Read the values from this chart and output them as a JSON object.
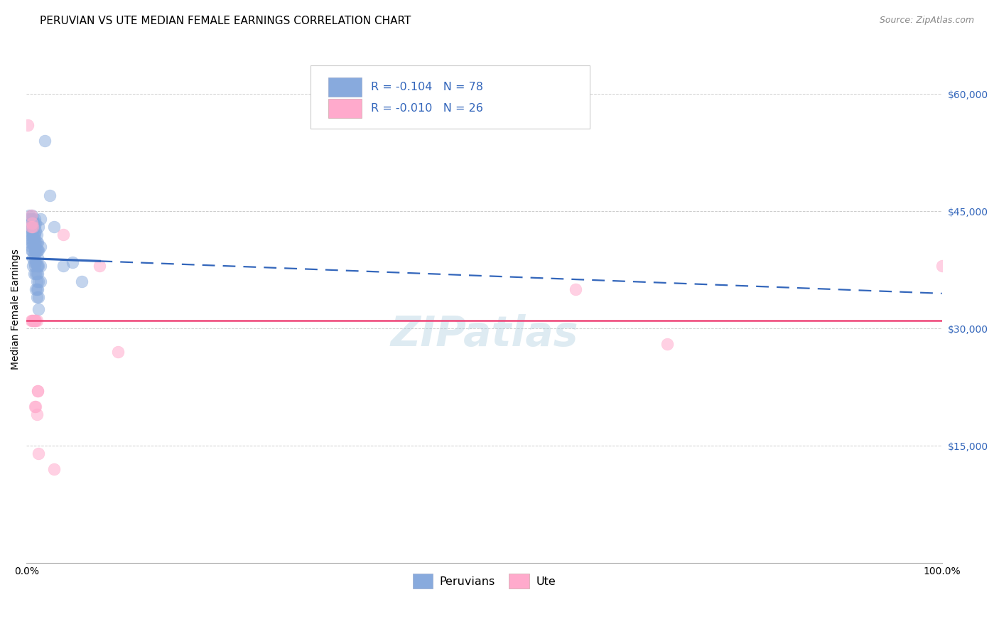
{
  "title": "PERUVIAN VS UTE MEDIAN FEMALE EARNINGS CORRELATION CHART",
  "source": "Source: ZipAtlas.com",
  "ylabel": "Median Female Earnings",
  "legend_blue_label": "Peruvians",
  "legend_pink_label": "Ute",
  "ylim": [
    0,
    65000
  ],
  "xlim": [
    0.0,
    100.0
  ],
  "yticks": [
    0,
    15000,
    30000,
    45000,
    60000
  ],
  "ytick_labels": [
    "",
    "$15,000",
    "$30,000",
    "$45,000",
    "$60,000"
  ],
  "watermark": "ZIPatlas",
  "blue_color": "#88AADD",
  "pink_color": "#FFAACC",
  "line_blue": "#3366BB",
  "line_pink": "#EE4477",
  "blue_R": "-0.104",
  "blue_N": "78",
  "pink_R": "-0.010",
  "pink_N": "26",
  "blue_scatter_x": [
    0.1,
    0.2,
    0.2,
    0.3,
    0.3,
    0.3,
    0.4,
    0.4,
    0.4,
    0.5,
    0.5,
    0.5,
    0.5,
    0.5,
    0.5,
    0.6,
    0.6,
    0.6,
    0.6,
    0.6,
    0.6,
    0.7,
    0.7,
    0.7,
    0.7,
    0.7,
    0.7,
    0.8,
    0.8,
    0.8,
    0.8,
    0.8,
    0.8,
    0.8,
    0.9,
    0.9,
    0.9,
    0.9,
    0.9,
    0.9,
    0.9,
    1.0,
    1.0,
    1.0,
    1.0,
    1.0,
    1.0,
    1.0,
    1.1,
    1.1,
    1.1,
    1.1,
    1.1,
    1.1,
    1.1,
    1.1,
    1.2,
    1.2,
    1.2,
    1.2,
    1.2,
    1.2,
    1.3,
    1.3,
    1.3,
    1.3,
    1.3,
    1.3,
    1.5,
    1.5,
    1.5,
    1.5,
    2.0,
    2.5,
    3.0,
    4.0,
    5.0,
    6.0
  ],
  "blue_scatter_y": [
    44000,
    43500,
    42000,
    44500,
    43000,
    42500,
    44000,
    43500,
    41000,
    44000,
    43000,
    42000,
    41500,
    40500,
    40000,
    44500,
    43500,
    43000,
    42500,
    41000,
    40000,
    44000,
    43500,
    42000,
    41000,
    39000,
    38000,
    43500,
    42000,
    41500,
    40500,
    39500,
    38500,
    37000,
    44000,
    43000,
    42000,
    41000,
    40000,
    39000,
    38000,
    43500,
    42500,
    41000,
    40000,
    38500,
    37000,
    35000,
    42000,
    41000,
    40000,
    38000,
    37000,
    36000,
    35000,
    34000,
    41000,
    40000,
    39000,
    38000,
    37000,
    35000,
    43000,
    40000,
    38000,
    36000,
    34000,
    32500,
    44000,
    40500,
    38000,
    36000,
    54000,
    47000,
    43000,
    38000,
    38500,
    36000
  ],
  "pink_scatter_x": [
    0.1,
    0.5,
    0.5,
    0.5,
    0.6,
    0.6,
    0.7,
    0.7,
    0.8,
    0.9,
    0.9,
    0.9,
    1.0,
    1.0,
    1.1,
    1.1,
    1.2,
    1.2,
    1.3,
    3.0,
    4.0,
    8.0,
    10.0,
    60.0,
    70.0,
    100.0
  ],
  "pink_scatter_y": [
    56000,
    44500,
    43000,
    31000,
    43500,
    31000,
    43000,
    31000,
    31000,
    31000,
    31000,
    20000,
    31000,
    20000,
    31000,
    19000,
    22000,
    22000,
    14000,
    12000,
    42000,
    38000,
    27000,
    35000,
    28000,
    38000
  ],
  "title_fontsize": 11,
  "source_fontsize": 9,
  "axis_label_fontsize": 10,
  "tick_fontsize": 10,
  "watermark_fontsize": 42,
  "blue_line_x0": 0.0,
  "blue_line_x1": 100.0,
  "blue_line_y0": 39000,
  "blue_line_y1": 34500,
  "blue_solid_end_x": 8.0,
  "pink_line_y": 31000
}
